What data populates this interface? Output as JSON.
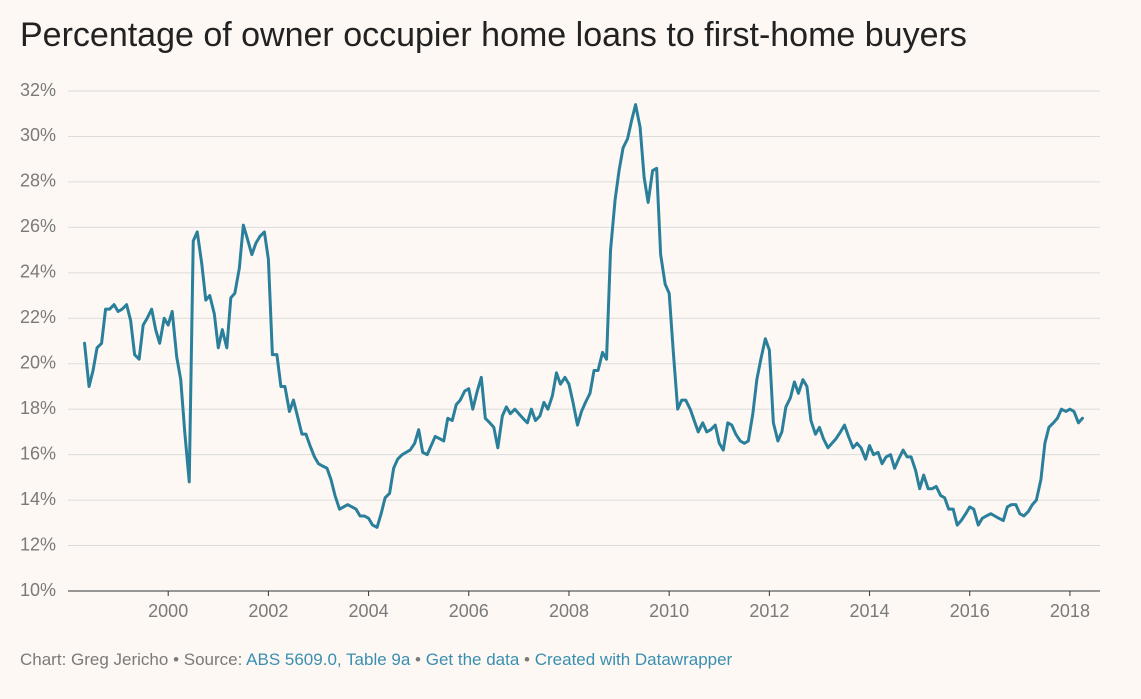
{
  "chart_data": {
    "type": "line",
    "title": "Percentage of owner occupier home loans to first-home buyers",
    "x": [
      1998.33,
      1998.42,
      1998.5,
      1998.58,
      1998.67,
      1998.75,
      1998.83,
      1998.92,
      1999.0,
      1999.08,
      1999.17,
      1999.25,
      1999.33,
      1999.42,
      1999.5,
      1999.58,
      1999.67,
      1999.75,
      1999.83,
      1999.92,
      2000.0,
      2000.08,
      2000.17,
      2000.25,
      2000.33,
      2000.42,
      2000.5,
      2000.58,
      2000.67,
      2000.75,
      2000.83,
      2000.92,
      2001.0,
      2001.08,
      2001.17,
      2001.25,
      2001.33,
      2001.42,
      2001.5,
      2001.58,
      2001.67,
      2001.75,
      2001.83,
      2001.92,
      2002.0,
      2002.08,
      2002.17,
      2002.25,
      2002.33,
      2002.42,
      2002.5,
      2002.58,
      2002.67,
      2002.75,
      2002.83,
      2002.92,
      2003.0,
      2003.08,
      2003.17,
      2003.25,
      2003.33,
      2003.42,
      2003.5,
      2003.58,
      2003.67,
      2003.75,
      2003.83,
      2003.92,
      2004.0,
      2004.08,
      2004.17,
      2004.25,
      2004.33,
      2004.42,
      2004.5,
      2004.58,
      2004.67,
      2004.75,
      2004.83,
      2004.92,
      2005.0,
      2005.08,
      2005.17,
      2005.25,
      2005.33,
      2005.42,
      2005.5,
      2005.58,
      2005.67,
      2005.75,
      2005.83,
      2005.92,
      2006.0,
      2006.08,
      2006.17,
      2006.25,
      2006.33,
      2006.42,
      2006.5,
      2006.58,
      2006.67,
      2006.75,
      2006.83,
      2006.92,
      2007.0,
      2007.08,
      2007.17,
      2007.25,
      2007.33,
      2007.42,
      2007.5,
      2007.58,
      2007.67,
      2007.75,
      2007.83,
      2007.92,
      2008.0,
      2008.08,
      2008.17,
      2008.25,
      2008.33,
      2008.42,
      2008.5,
      2008.58,
      2008.67,
      2008.75,
      2008.83,
      2008.92,
      2009.0,
      2009.08,
      2009.17,
      2009.25,
      2009.33,
      2009.42,
      2009.5,
      2009.58,
      2009.67,
      2009.75,
      2009.83,
      2009.92,
      2010.0,
      2010.08,
      2010.17,
      2010.25,
      2010.33,
      2010.42,
      2010.5,
      2010.58,
      2010.67,
      2010.75,
      2010.83,
      2010.92,
      2011.0,
      2011.08,
      2011.17,
      2011.25,
      2011.33,
      2011.42,
      2011.5,
      2011.58,
      2011.67,
      2011.75,
      2011.83,
      2011.92,
      2012.0,
      2012.08,
      2012.17,
      2012.25,
      2012.33,
      2012.42,
      2012.5,
      2012.58,
      2012.67,
      2012.75,
      2012.83,
      2012.92,
      2013.0,
      2013.08,
      2013.17,
      2013.25,
      2013.33,
      2013.42,
      2013.5,
      2013.58,
      2013.67,
      2013.75,
      2013.83,
      2013.92,
      2014.0,
      2014.08,
      2014.17,
      2014.25,
      2014.33,
      2014.42,
      2014.5,
      2014.58,
      2014.67,
      2014.75,
      2014.83,
      2014.92,
      2015.0,
      2015.08,
      2015.17,
      2015.25,
      2015.33,
      2015.42,
      2015.5,
      2015.58,
      2015.67,
      2015.75,
      2015.83,
      2015.92,
      2016.0,
      2016.08,
      2016.17,
      2016.25,
      2016.33,
      2016.42,
      2016.5,
      2016.58,
      2016.67,
      2016.75,
      2016.83,
      2016.92,
      2017.0,
      2017.08,
      2017.17,
      2017.25,
      2017.33,
      2017.42,
      2017.5,
      2017.58,
      2017.67,
      2017.75,
      2017.83,
      2017.92,
      2018.0,
      2018.08,
      2018.17,
      2018.25
    ],
    "values": [
      20.9,
      19.0,
      19.7,
      20.7,
      20.9,
      22.4,
      22.4,
      22.6,
      22.3,
      22.4,
      22.6,
      21.9,
      20.4,
      20.2,
      21.7,
      22.0,
      22.4,
      21.5,
      20.9,
      22.0,
      21.7,
      22.3,
      20.3,
      19.3,
      17.0,
      14.8,
      25.4,
      25.8,
      24.4,
      22.8,
      23.0,
      22.2,
      20.7,
      21.5,
      20.7,
      22.9,
      23.1,
      24.2,
      26.1,
      25.5,
      24.8,
      25.3,
      25.6,
      25.8,
      24.6,
      20.4,
      20.4,
      19.0,
      19.0,
      17.9,
      18.4,
      17.7,
      16.9,
      16.9,
      16.4,
      15.9,
      15.6,
      15.5,
      15.4,
      14.9,
      14.2,
      13.6,
      13.7,
      13.8,
      13.7,
      13.6,
      13.3,
      13.3,
      13.2,
      12.9,
      12.8,
      13.4,
      14.1,
      14.3,
      15.4,
      15.8,
      16.0,
      16.1,
      16.2,
      16.5,
      17.1,
      16.1,
      16.0,
      16.4,
      16.8,
      16.7,
      16.6,
      17.6,
      17.5,
      18.2,
      18.4,
      18.8,
      18.9,
      18.0,
      18.8,
      19.4,
      17.6,
      17.4,
      17.2,
      16.3,
      17.7,
      18.1,
      17.8,
      18.0,
      17.8,
      17.6,
      17.4,
      18.0,
      17.5,
      17.7,
      18.3,
      18.0,
      18.6,
      19.6,
      19.1,
      19.4,
      19.1,
      18.3,
      17.3,
      17.9,
      18.3,
      18.7,
      19.7,
      19.7,
      20.5,
      20.2,
      25.0,
      27.2,
      28.5,
      29.5,
      29.9,
      30.7,
      31.4,
      30.4,
      28.2,
      27.1,
      28.5,
      28.6,
      24.8,
      23.5,
      23.1,
      20.6,
      18.0,
      18.4,
      18.4,
      18.0,
      17.5,
      17.0,
      17.4,
      17.0,
      17.1,
      17.3,
      16.5,
      16.2,
      17.4,
      17.3,
      16.9,
      16.6,
      16.5,
      16.6,
      17.8,
      19.3,
      20.2,
      21.1,
      20.6,
      17.4,
      16.6,
      17.0,
      18.1,
      18.5,
      19.2,
      18.7,
      19.3,
      19.0,
      17.5,
      16.9,
      17.2,
      16.7,
      16.3,
      16.5,
      16.7,
      17.0,
      17.3,
      16.8,
      16.3,
      16.5,
      16.3,
      15.8,
      16.4,
      16.0,
      16.1,
      15.6,
      15.9,
      16.0,
      15.4,
      15.8,
      16.2,
      15.9,
      15.9,
      15.3,
      14.5,
      15.1,
      14.5,
      14.5,
      14.6,
      14.2,
      14.1,
      13.6,
      13.6,
      12.9,
      13.1,
      13.4,
      13.7,
      13.6,
      12.9,
      13.2,
      13.3,
      13.4,
      13.3,
      13.2,
      13.1,
      13.7,
      13.8,
      13.8,
      13.4,
      13.3,
      13.5,
      13.8,
      14.0,
      14.9,
      16.5,
      17.2,
      17.4,
      17.6,
      18.0,
      17.9,
      18.0,
      17.9,
      17.4,
      17.6
    ],
    "color": "#2a7f9b",
    "xlim": [
      1998,
      2018.6
    ],
    "xticks": [
      2000,
      2002,
      2004,
      2006,
      2008,
      2010,
      2012,
      2014,
      2016,
      2018
    ],
    "ylim": [
      10,
      32
    ],
    "yticks": [
      {
        "value": 10,
        "label": "10%"
      },
      {
        "value": 12,
        "label": "12%"
      },
      {
        "value": 14,
        "label": "14%"
      },
      {
        "value": 16,
        "label": "16%"
      },
      {
        "value": 18,
        "label": "18%"
      },
      {
        "value": 20,
        "label": "20%"
      },
      {
        "value": 22,
        "label": "22%"
      },
      {
        "value": 24,
        "label": "24%"
      },
      {
        "value": 26,
        "label": "26%"
      },
      {
        "value": 28,
        "label": "28%"
      },
      {
        "value": 30,
        "label": "30%"
      },
      {
        "value": 32,
        "label": "32%"
      }
    ],
    "grid": true
  },
  "footer": {
    "chart": "Chart: Greg Jericho",
    "separator": "•",
    "source_label": "Source:",
    "source": "ABS 5609.0, Table 9a",
    "get_data": "Get the data",
    "created_with": "Created with Datawrapper"
  }
}
